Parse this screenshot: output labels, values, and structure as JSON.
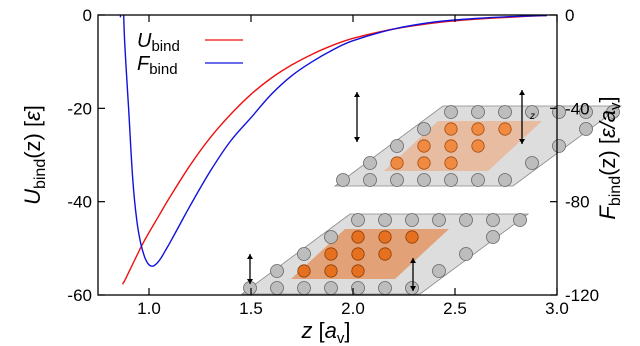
{
  "chart_data": {
    "type": "line",
    "x_range": [
      0.75,
      3.0
    ],
    "y_left_range": [
      -60,
      0
    ],
    "y_right_range": [
      -120,
      0
    ],
    "x_ticks": [
      "1.0",
      "1.5",
      "2.0",
      "2.5",
      "3.0"
    ],
    "y_left_ticks": [
      "0",
      "-20",
      "-40",
      "-60"
    ],
    "y_right_ticks": [
      "0",
      "-40",
      "-80",
      "-120"
    ],
    "x_title": {
      "main": "z",
      "unit": "a",
      "unit_sub": "v"
    },
    "y_left_title": {
      "main": "U",
      "sub": "bind",
      "arg": "(z)",
      "unit": "ε"
    },
    "y_right_title": {
      "main": "F",
      "sub": "bind",
      "arg": "(z)",
      "unit": "ε/a",
      "unit_sub": "v"
    },
    "grid": false,
    "legend_position": "top-left",
    "series": [
      {
        "name": "U",
        "name_sub": "bind",
        "color": "#ee1111",
        "axis": "left",
        "x": [
          0.87,
          0.88,
          0.9,
          0.93,
          0.96,
          1.0,
          1.05,
          1.1,
          1.2,
          1.3,
          1.4,
          1.5,
          1.6,
          1.7,
          1.8,
          1.9,
          2.0,
          2.2,
          2.4,
          2.6,
          2.8,
          2.95
        ],
        "y": [
          -57.7,
          -57.0,
          -55.2,
          -52.5,
          -49.8,
          -46.6,
          -42.9,
          -39.2,
          -32.3,
          -26.3,
          -21.3,
          -17.0,
          -13.5,
          -10.7,
          -8.4,
          -6.5,
          -5.0,
          -3.0,
          -1.7,
          -0.9,
          -0.4,
          -0.1
        ]
      },
      {
        "name": "F",
        "name_sub": "bind",
        "color": "#1111dd",
        "axis": "right",
        "x": [
          0.86,
          0.87,
          0.88,
          0.9,
          0.92,
          0.94,
          0.96,
          0.98,
          1.0,
          1.02,
          1.04,
          1.06,
          1.08,
          1.1,
          1.15,
          1.2,
          1.3,
          1.4,
          1.5,
          1.6,
          1.7,
          1.8,
          1.9,
          2.0,
          2.2,
          2.4,
          2.6,
          2.8,
          2.95
        ],
        "y": [
          -1,
          14,
          -10,
          -40,
          -70,
          -88,
          -98,
          -104,
          -107,
          -107.6,
          -106.3,
          -104,
          -101,
          -98,
          -90,
          -82,
          -67,
          -54,
          -44,
          -34,
          -26,
          -20,
          -15,
          -11,
          -6,
          -3,
          -1.5,
          -0.6,
          -0.2
        ]
      }
    ],
    "inset": {
      "distance_label": "z",
      "top_layer_color": "#f0a070",
      "bottom_layer_color": "#e57020",
      "substrate_color": "#bdbdbd"
    }
  }
}
